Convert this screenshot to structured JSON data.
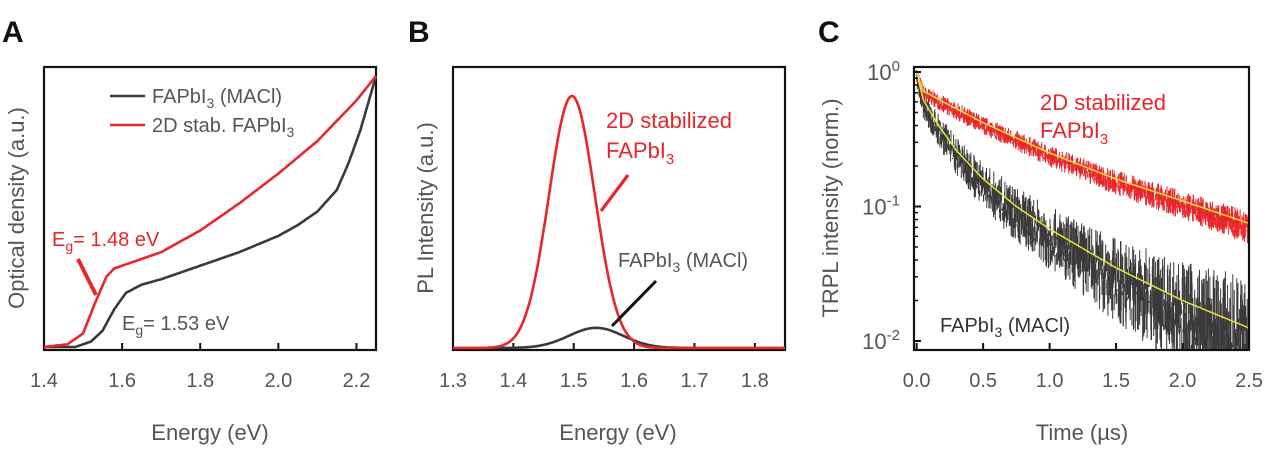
{
  "colors": {
    "red": "#e8262b",
    "black": "#3a3a3a",
    "fit": "#e6e235",
    "axis": "#111111",
    "text": "#555555"
  },
  "chart_data": [
    {
      "panel": "A",
      "type": "line",
      "xlabel": "Energy (eV)",
      "ylabel": "Optical density (a.u.)",
      "xlim": [
        1.4,
        2.25
      ],
      "ylim": [
        0,
        1
      ],
      "xticks": [
        "1.4",
        "1.6",
        "1.8",
        "2.0",
        "2.2"
      ],
      "legend": {
        "position": "top",
        "entries": [
          {
            "base": "FAPbI",
            "sub": "3",
            "rest": " (MACl)",
            "color": "black"
          },
          {
            "base": "2D stab. FAPbI",
            "sub": "3",
            "rest": "",
            "color": "red"
          }
        ]
      },
      "annotations": [
        {
          "base": "E",
          "sub": "g",
          "rest": "= 1.48 eV",
          "color": "red"
        },
        {
          "base": "E",
          "sub": "g",
          "rest": "= 1.53 eV",
          "color": "black"
        }
      ],
      "series": [
        {
          "name": "FAPbI3 (MACl)",
          "color": "black",
          "x": [
            1.4,
            1.48,
            1.52,
            1.55,
            1.58,
            1.61,
            1.65,
            1.7,
            1.8,
            1.9,
            2.0,
            2.05,
            2.1,
            2.15,
            2.18,
            2.21,
            2.25
          ],
          "y": [
            0.0,
            0.0,
            0.02,
            0.06,
            0.14,
            0.2,
            0.23,
            0.25,
            0.3,
            0.35,
            0.41,
            0.45,
            0.5,
            0.58,
            0.68,
            0.8,
            1.0
          ]
        },
        {
          "name": "2D stab. FAPbI3",
          "color": "red",
          "x": [
            1.4,
            1.46,
            1.5,
            1.53,
            1.56,
            1.58,
            1.62,
            1.7,
            1.8,
            1.9,
            2.0,
            2.1,
            2.2,
            2.25
          ],
          "y": [
            0.0,
            0.01,
            0.05,
            0.16,
            0.26,
            0.29,
            0.31,
            0.35,
            0.43,
            0.53,
            0.64,
            0.76,
            0.91,
            1.0
          ]
        }
      ]
    },
    {
      "panel": "B",
      "type": "line",
      "xlabel": "Energy (eV)",
      "ylabel": "PL Intensity (a.u.)",
      "xlim": [
        1.3,
        1.85
      ],
      "ylim": [
        0,
        1.08
      ],
      "xticks": [
        "1.3",
        "1.4",
        "1.5",
        "1.6",
        "1.7",
        "1.8"
      ],
      "annotations": [
        {
          "line1": "2D stabilized",
          "base": "FAPbI",
          "sub": "3",
          "rest": "",
          "color": "red"
        },
        {
          "base": "FAPbI",
          "sub": "3",
          "rest": " (MACl)",
          "color": "black"
        }
      ],
      "series": [
        {
          "name": "2D stabilized FAPbI3",
          "color": "red",
          "shape": "gaussian",
          "center": 1.497,
          "amplitude": 1.0,
          "sigma": 0.038
        },
        {
          "name": "FAPbI3 (MACl)",
          "color": "black",
          "shape": "gaussian",
          "center": 1.537,
          "amplitude": 0.08,
          "sigma": 0.045
        }
      ]
    },
    {
      "panel": "C",
      "type": "line",
      "xlabel": "Time (µs)",
      "ylabel": "TRPL intensity (norm.)",
      "xlim": [
        -0.02,
        2.5
      ],
      "ylim": [
        0.008,
        1.1
      ],
      "yscale": "log",
      "xticks": [
        "0.0",
        "0.5",
        "1.0",
        "1.5",
        "2.0",
        "2.5"
      ],
      "yticks": [
        {
          "base": "10",
          "exp": "0",
          "value": 1
        },
        {
          "base": "10",
          "exp": "-1",
          "value": 0.1
        },
        {
          "base": "10",
          "exp": "-2",
          "value": 0.01
        }
      ],
      "annotations": [
        {
          "line1": "2D stabilized",
          "base": "FAPbI",
          "sub": "3",
          "rest": "",
          "color": "red"
        },
        {
          "base": "FAPbI",
          "sub": "3",
          "rest": " (MACl)",
          "color": "black"
        }
      ],
      "series": [
        {
          "name": "2D stabilized FAPbI3",
          "color": "red",
          "fit_x": [
            0.0,
            0.05,
            0.2,
            0.5,
            1.0,
            1.5,
            2.0,
            2.5
          ],
          "fit_y": [
            1.0,
            0.72,
            0.6,
            0.42,
            0.25,
            0.16,
            0.11,
            0.075
          ]
        },
        {
          "name": "FAPbI3 (MACl)",
          "color": "black",
          "fit_x": [
            0.0,
            0.05,
            0.15,
            0.3,
            0.5,
            0.75,
            1.0,
            1.5,
            2.0,
            2.5
          ],
          "fit_y": [
            1.0,
            0.62,
            0.42,
            0.26,
            0.16,
            0.1,
            0.068,
            0.035,
            0.02,
            0.0125
          ]
        }
      ]
    }
  ]
}
